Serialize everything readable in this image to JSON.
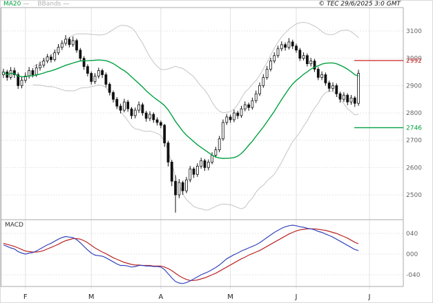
{
  "header": {
    "copyright": "© TEC 29/6/2025 3:0 GMT"
  },
  "legend": {
    "ma20": {
      "label": "MA20",
      "dash": "—",
      "color": "#00a040"
    },
    "bbands": {
      "label": "BBands",
      "dash": "—",
      "color": "#c4c4c4"
    }
  },
  "chart_data": {
    "type": "candlestick",
    "title": "",
    "x_axis": {
      "labels": [
        "F",
        "M",
        "A",
        "M",
        "J",
        "J"
      ],
      "tick_indices": [
        6,
        24,
        43,
        62,
        80,
        100
      ]
    },
    "price_panel": {
      "ylabel": "",
      "y_ticks": [
        3100,
        3000,
        2900,
        2800,
        2700,
        2600,
        2500
      ],
      "ylim": [
        2430,
        3110
      ],
      "grid": true,
      "levels": [
        {
          "value": 2992,
          "label": "2992",
          "color": "#cc2222"
        },
        {
          "value": 2746,
          "label": "2746",
          "color": "#00a040"
        }
      ],
      "overlays": [
        "MA20",
        "BBands"
      ],
      "candles_ohlc": [
        [
          2940,
          2962,
          2928,
          2950
        ],
        [
          2950,
          2958,
          2918,
          2930
        ],
        [
          2930,
          2968,
          2922,
          2955
        ],
        [
          2955,
          2966,
          2928,
          2940
        ],
        [
          2940,
          2948,
          2888,
          2900
        ],
        [
          2900,
          2932,
          2890,
          2920
        ],
        [
          2920,
          2948,
          2910,
          2935
        ],
        [
          2935,
          2968,
          2926,
          2955
        ],
        [
          2955,
          2964,
          2930,
          2940
        ],
        [
          2940,
          2978,
          2932,
          2965
        ],
        [
          2965,
          2988,
          2955,
          2975
        ],
        [
          2975,
          3002,
          2966,
          2990
        ],
        [
          2990,
          3016,
          2982,
          3005
        ],
        [
          3005,
          3014,
          2984,
          2995
        ],
        [
          2995,
          3032,
          2988,
          3020
        ],
        [
          3020,
          3052,
          3012,
          3040
        ],
        [
          3040,
          3066,
          3030,
          3055
        ],
        [
          3055,
          3085,
          3046,
          3070
        ],
        [
          3070,
          3078,
          3040,
          3050
        ],
        [
          3050,
          3080,
          3042,
          3065
        ],
        [
          3065,
          3072,
          3020,
          3030
        ],
        [
          3030,
          3038,
          2990,
          3000
        ],
        [
          3000,
          3008,
          2958,
          2970
        ],
        [
          2970,
          2978,
          2934,
          2945
        ],
        [
          2945,
          2952,
          2904,
          2915
        ],
        [
          2915,
          2946,
          2906,
          2935
        ],
        [
          2935,
          2966,
          2926,
          2955
        ],
        [
          2955,
          2962,
          2928,
          2940
        ],
        [
          2940,
          2948,
          2894,
          2905
        ],
        [
          2905,
          2912,
          2864,
          2875
        ],
        [
          2875,
          2882,
          2838,
          2850
        ],
        [
          2850,
          2858,
          2814,
          2825
        ],
        [
          2825,
          2834,
          2798,
          2810
        ],
        [
          2810,
          2852,
          2802,
          2840
        ],
        [
          2840,
          2848,
          2804,
          2815
        ],
        [
          2815,
          2822,
          2778,
          2790
        ],
        [
          2790,
          2820,
          2780,
          2810
        ],
        [
          2810,
          2842,
          2800,
          2830
        ],
        [
          2830,
          2838,
          2790,
          2800
        ],
        [
          2800,
          2808,
          2768,
          2780
        ],
        [
          2780,
          2806,
          2770,
          2795
        ],
        [
          2795,
          2802,
          2764,
          2775
        ],
        [
          2775,
          2784,
          2754,
          2765
        ],
        [
          2765,
          2772,
          2744,
          2755
        ],
        [
          2755,
          2760,
          2676,
          2690
        ],
        [
          2690,
          2698,
          2604,
          2620
        ],
        [
          2620,
          2628,
          2532,
          2550
        ],
        [
          2550,
          2572,
          2435,
          2500
        ],
        [
          2500,
          2558,
          2488,
          2545
        ],
        [
          2545,
          2552,
          2500,
          2515
        ],
        [
          2515,
          2566,
          2506,
          2555
        ],
        [
          2555,
          2606,
          2546,
          2595
        ],
        [
          2595,
          2602,
          2562,
          2575
        ],
        [
          2575,
          2616,
          2566,
          2605
        ],
        [
          2605,
          2636,
          2596,
          2625
        ],
        [
          2625,
          2632,
          2588,
          2600
        ],
        [
          2600,
          2630,
          2590,
          2620
        ],
        [
          2620,
          2656,
          2612,
          2645
        ],
        [
          2645,
          2676,
          2636,
          2665
        ],
        [
          2665,
          2716,
          2656,
          2705
        ],
        [
          2705,
          2776,
          2698,
          2765
        ],
        [
          2765,
          2796,
          2756,
          2785
        ],
        [
          2785,
          2794,
          2764,
          2775
        ],
        [
          2775,
          2812,
          2766,
          2800
        ],
        [
          2800,
          2808,
          2778,
          2790
        ],
        [
          2790,
          2826,
          2782,
          2815
        ],
        [
          2815,
          2842,
          2806,
          2830
        ],
        [
          2830,
          2838,
          2808,
          2820
        ],
        [
          2820,
          2856,
          2812,
          2845
        ],
        [
          2845,
          2882,
          2836,
          2870
        ],
        [
          2870,
          2912,
          2862,
          2900
        ],
        [
          2900,
          2942,
          2892,
          2930
        ],
        [
          2930,
          2972,
          2922,
          2960
        ],
        [
          2960,
          3002,
          2952,
          2990
        ],
        [
          2990,
          3022,
          2982,
          3010
        ],
        [
          3010,
          3046,
          3002,
          3035
        ],
        [
          3035,
          3062,
          3026,
          3050
        ],
        [
          3050,
          3058,
          3028,
          3040
        ],
        [
          3040,
          3074,
          3032,
          3060
        ],
        [
          3060,
          3068,
          3034,
          3045
        ],
        [
          3045,
          3054,
          3020,
          3030
        ],
        [
          3030,
          3038,
          2990,
          3000
        ],
        [
          3000,
          3022,
          2992,
          3010
        ],
        [
          3010,
          3018,
          2970,
          2980
        ],
        [
          2980,
          3002,
          2970,
          2990
        ],
        [
          2990,
          2998,
          2950,
          2960
        ],
        [
          2960,
          2968,
          2920,
          2930
        ],
        [
          2930,
          2952,
          2920,
          2940
        ],
        [
          2940,
          2948,
          2900,
          2910
        ],
        [
          2910,
          2918,
          2878,
          2890
        ],
        [
          2890,
          2912,
          2880,
          2900
        ],
        [
          2900,
          2908,
          2858,
          2870
        ],
        [
          2870,
          2878,
          2838,
          2850
        ],
        [
          2850,
          2876,
          2840,
          2865
        ],
        [
          2865,
          2872,
          2828,
          2840
        ],
        [
          2840,
          2866,
          2830,
          2855
        ],
        [
          2855,
          2862,
          2822,
          2835
        ],
        [
          2835,
          2958,
          2826,
          2945
        ]
      ]
    },
    "macd_panel": {
      "label": "MACD",
      "y_ticks": [
        {
          "value": 0.4,
          "label": "040"
        },
        {
          "value": 0.0,
          "label": "000"
        },
        {
          "value": -0.4,
          "label": "-040"
        }
      ],
      "macd_color": "#3344bb",
      "signal_color": "#bb2222",
      "macd_line": [
        0.18,
        0.15,
        0.12,
        0.1,
        0.05,
        0.02,
        0.0,
        0.02,
        0.03,
        0.06,
        0.1,
        0.14,
        0.18,
        0.21,
        0.25,
        0.29,
        0.32,
        0.34,
        0.33,
        0.32,
        0.28,
        0.22,
        0.15,
        0.08,
        0.02,
        -0.02,
        -0.03,
        -0.04,
        -0.07,
        -0.11,
        -0.15,
        -0.19,
        -0.22,
        -0.22,
        -0.23,
        -0.25,
        -0.24,
        -0.22,
        -0.22,
        -0.23,
        -0.23,
        -0.24,
        -0.24,
        -0.25,
        -0.3,
        -0.38,
        -0.46,
        -0.53,
        -0.56,
        -0.57,
        -0.55,
        -0.52,
        -0.48,
        -0.44,
        -0.4,
        -0.37,
        -0.34,
        -0.3,
        -0.26,
        -0.21,
        -0.15,
        -0.09,
        -0.05,
        -0.01,
        0.02,
        0.06,
        0.09,
        0.12,
        0.15,
        0.18,
        0.22,
        0.27,
        0.32,
        0.37,
        0.42,
        0.46,
        0.5,
        0.53,
        0.55,
        0.56,
        0.55,
        0.53,
        0.52,
        0.5,
        0.49,
        0.47,
        0.44,
        0.42,
        0.39,
        0.36,
        0.33,
        0.29,
        0.25,
        0.21,
        0.17,
        0.13,
        0.09,
        0.07
      ],
      "signal_line": [
        0.21,
        0.19,
        0.17,
        0.15,
        0.12,
        0.09,
        0.06,
        0.05,
        0.04,
        0.04,
        0.05,
        0.07,
        0.1,
        0.13,
        0.16,
        0.19,
        0.23,
        0.26,
        0.28,
        0.3,
        0.3,
        0.29,
        0.26,
        0.22,
        0.17,
        0.12,
        0.08,
        0.04,
        0.01,
        -0.03,
        -0.07,
        -0.1,
        -0.13,
        -0.16,
        -0.18,
        -0.2,
        -0.21,
        -0.21,
        -0.22,
        -0.22,
        -0.22,
        -0.23,
        -0.23,
        -0.23,
        -0.25,
        -0.28,
        -0.32,
        -0.37,
        -0.42,
        -0.46,
        -0.49,
        -0.51,
        -0.51,
        -0.5,
        -0.48,
        -0.46,
        -0.43,
        -0.4,
        -0.37,
        -0.33,
        -0.29,
        -0.25,
        -0.21,
        -0.17,
        -0.13,
        -0.09,
        -0.06,
        -0.02,
        0.01,
        0.04,
        0.07,
        0.11,
        0.15,
        0.19,
        0.23,
        0.27,
        0.31,
        0.35,
        0.39,
        0.42,
        0.45,
        0.47,
        0.48,
        0.49,
        0.49,
        0.49,
        0.48,
        0.47,
        0.46,
        0.44,
        0.42,
        0.4,
        0.37,
        0.34,
        0.31,
        0.27,
        0.23,
        0.2
      ]
    }
  }
}
